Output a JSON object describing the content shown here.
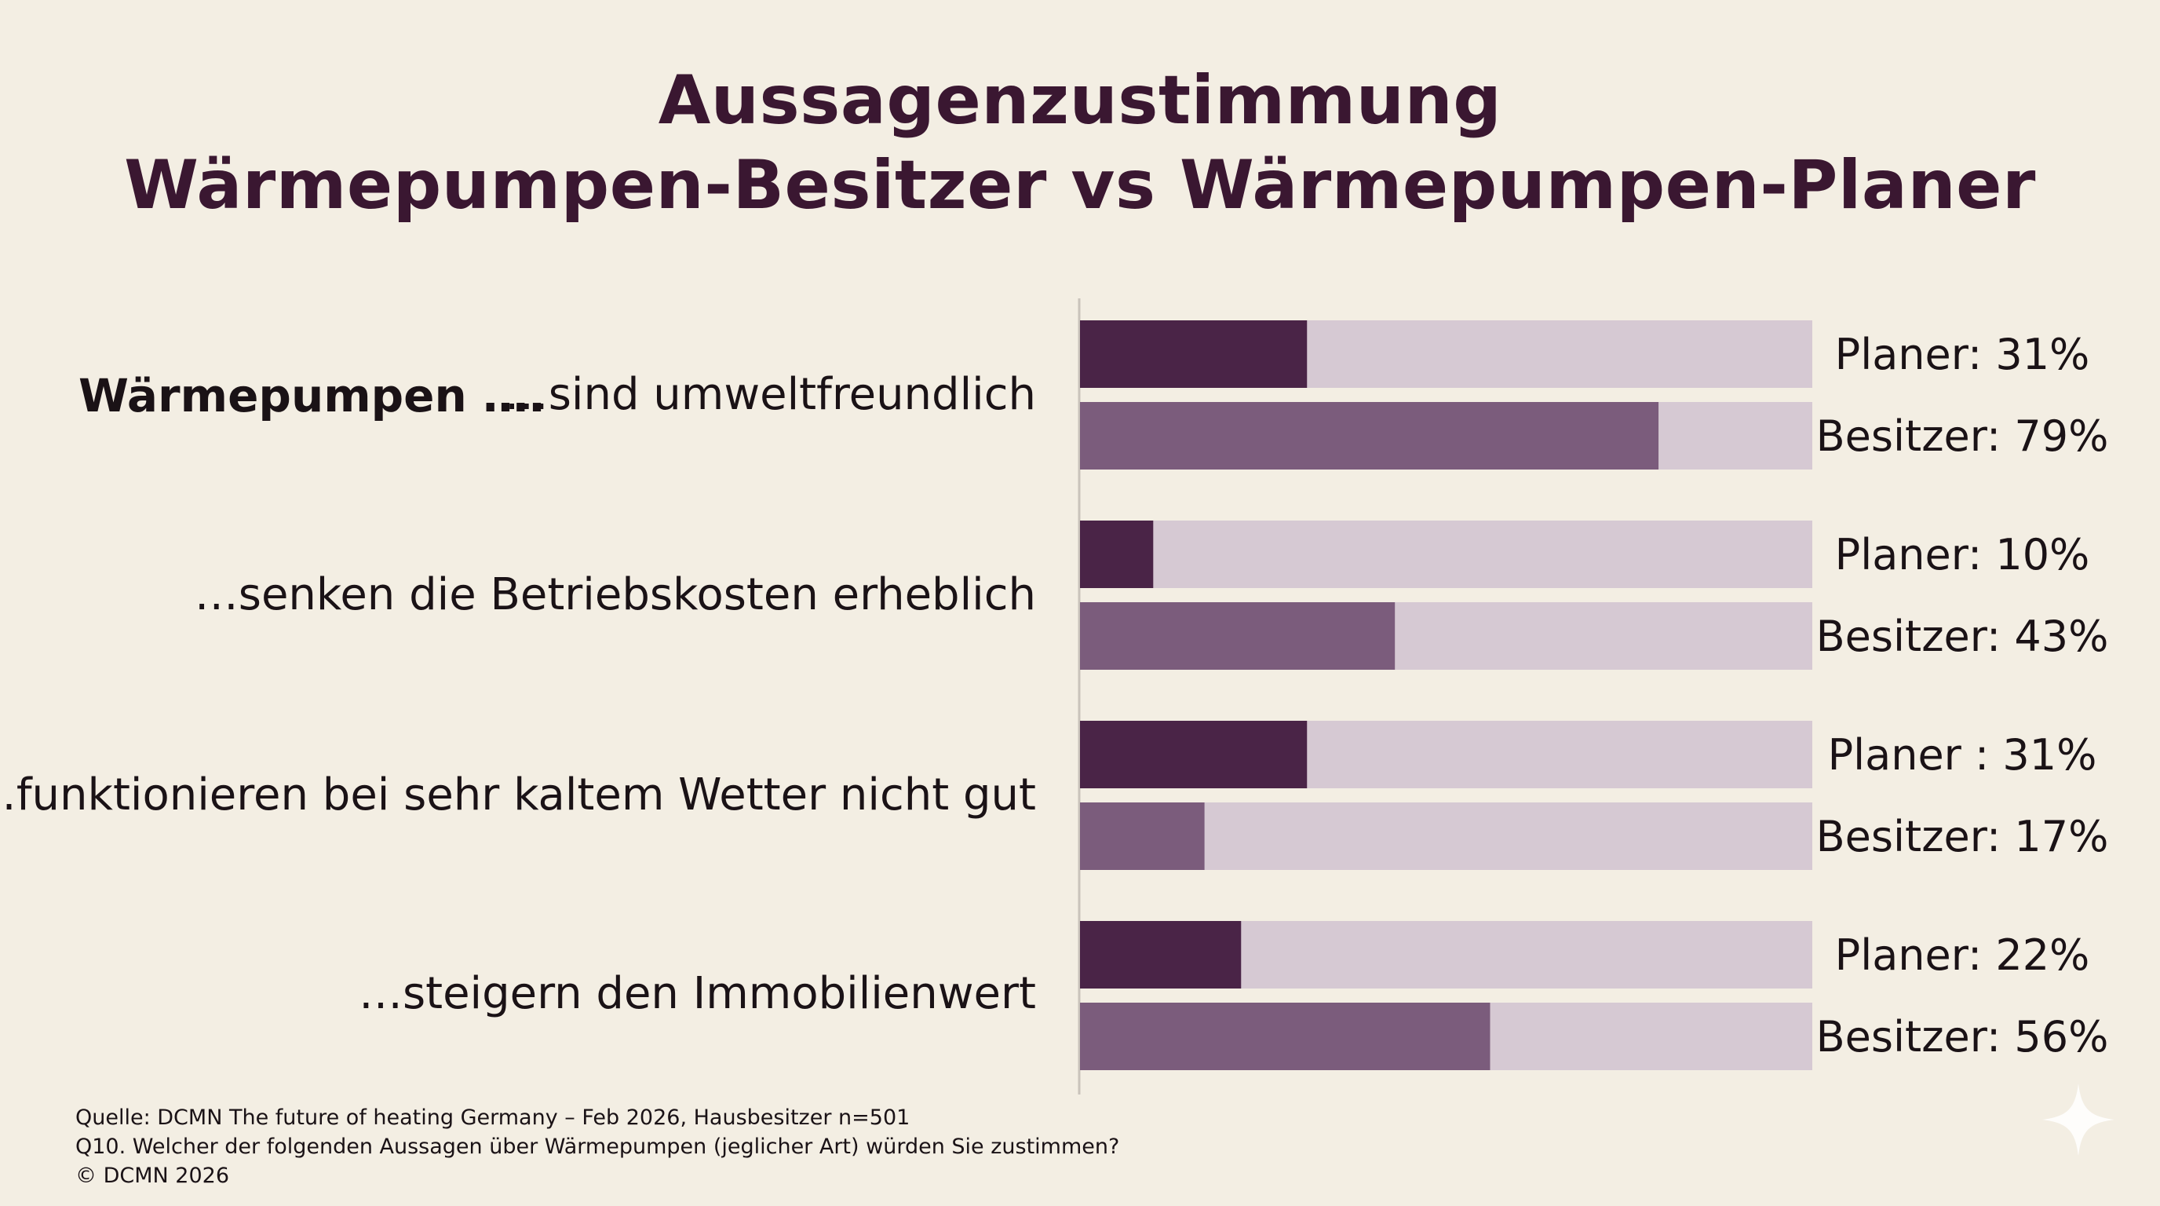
{
  "title": {
    "line1": "Aussagenzustimmung",
    "line2": "Wärmepumpen-Besitzer vs Wärmepumpen-Planer"
  },
  "prefix_label": "Wärmepumpen ….",
  "colors": {
    "background": "#f3eee3",
    "planer_bar": "#4a2447",
    "besitzer_bar": "#7b5c7c",
    "track": "#d6c9d3",
    "axis": "#c9c3bb",
    "text": "#1a1216"
  },
  "chart_data": {
    "type": "bar",
    "orientation": "horizontal",
    "xlim": [
      0,
      100
    ],
    "grid": false,
    "categories": [
      "…sind umweltfreundlich",
      "…senken die Betriebskosten erheblich",
      "…funktionieren bei sehr kaltem Wetter nicht gut",
      "…steigern den Immobilienwert"
    ],
    "series": [
      {
        "name": "Planer",
        "values": [
          31,
          10,
          31,
          22
        ],
        "labels": [
          "Planer: 31%",
          "Planer: 10%",
          "Planer : 31%",
          "Planer: 22%"
        ]
      },
      {
        "name": "Besitzer",
        "values": [
          79,
          43,
          17,
          56
        ],
        "labels": [
          "Besitzer: 79%",
          "Besitzer: 43%",
          "Besitzer: 17%",
          "Besitzer: 56%"
        ]
      }
    ]
  },
  "footer": {
    "source": "Quelle: DCMN The future of heating Germany – Feb 2026, Hausbesitzer n=501",
    "question": "Q10. Welcher der folgenden Aussagen über Wärmepumpen (jeglicher Art) würden Sie zustimmen?",
    "copyright": "© DCMN 2026"
  },
  "watermark_icon": "sparkle-icon"
}
